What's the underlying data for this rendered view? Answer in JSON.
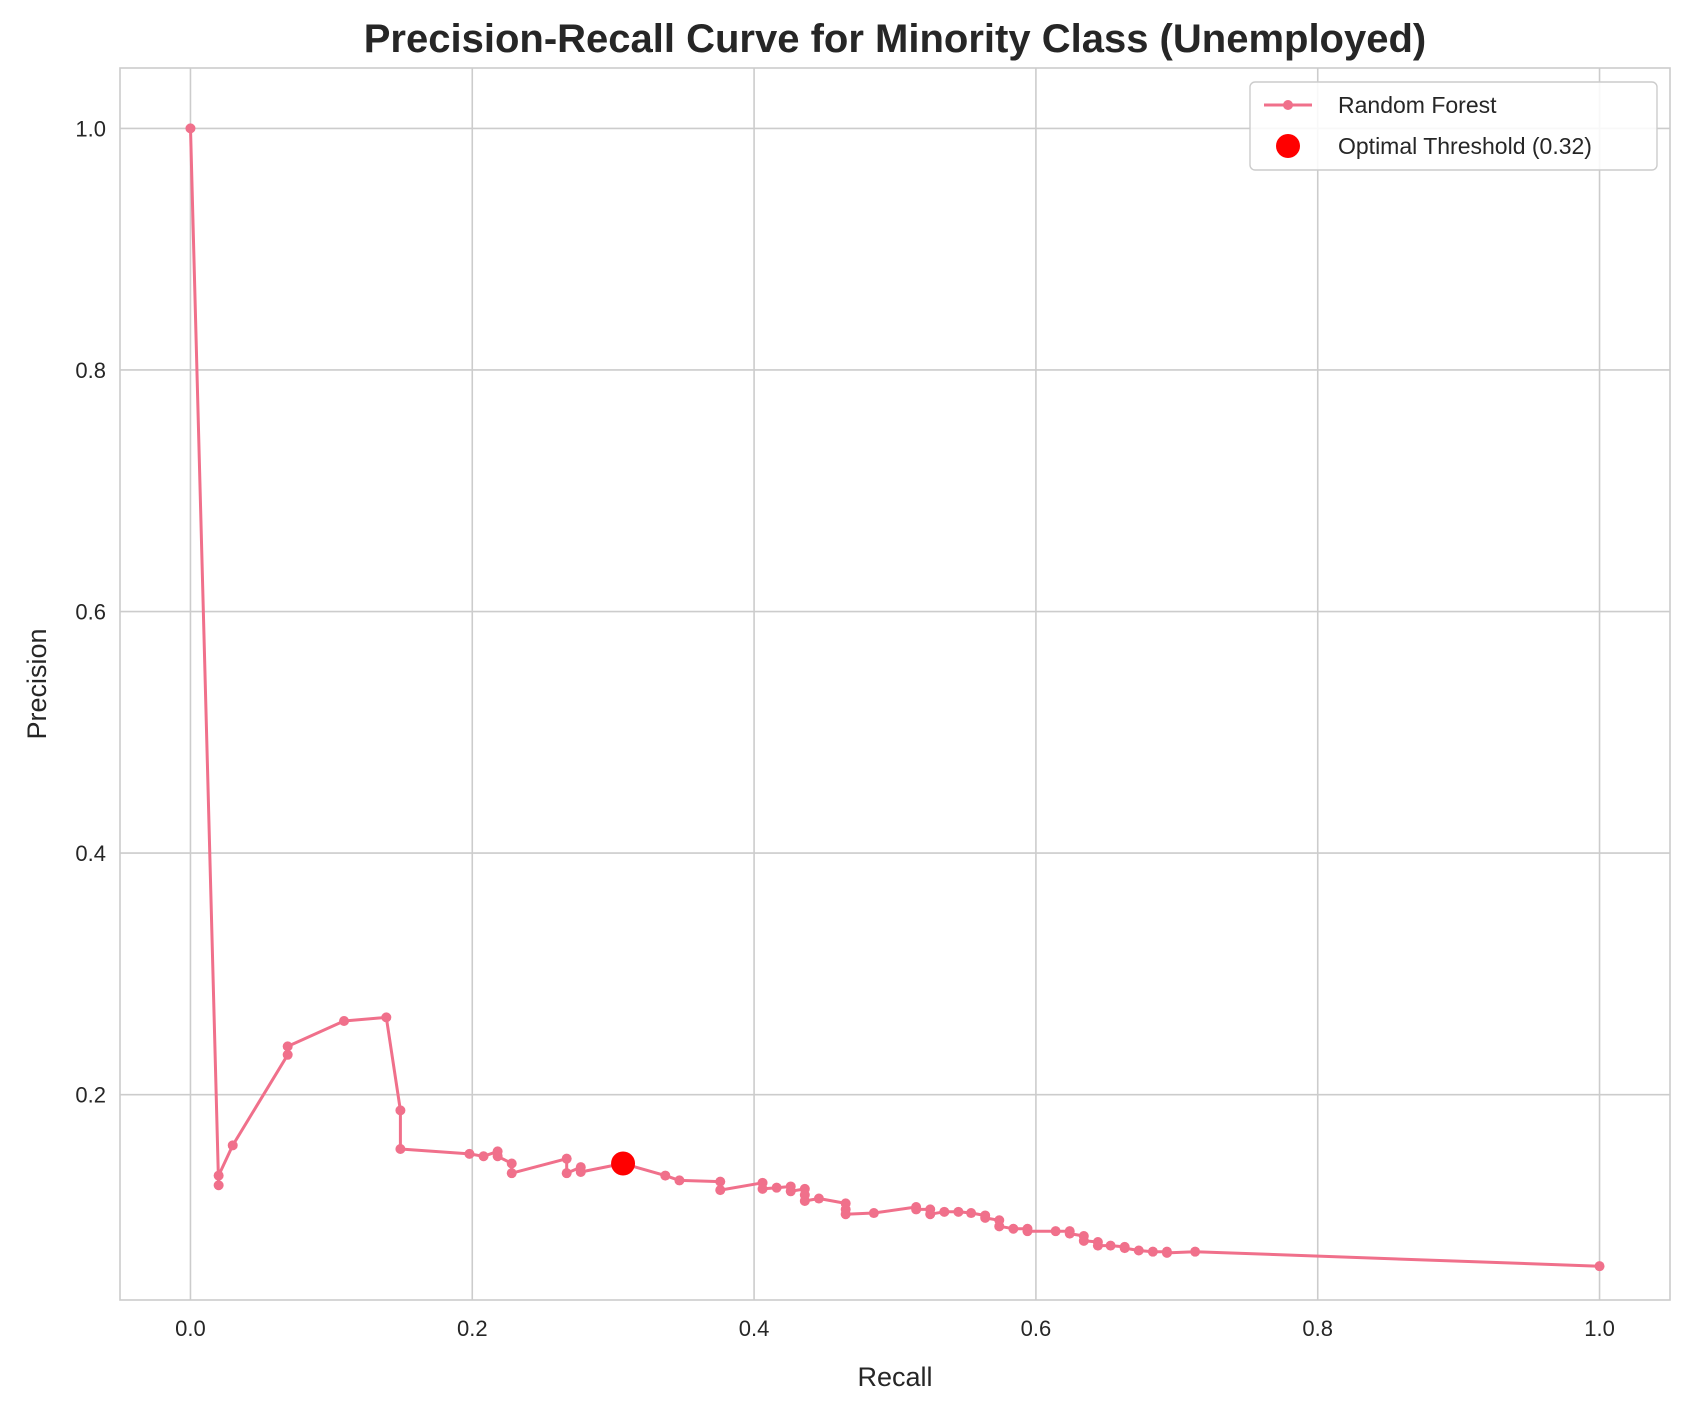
{
  "chart_data": {
    "type": "line",
    "title": "Precision-Recall Curve for Minority Class (Unemployed)",
    "xlabel": "Recall",
    "ylabel": "Precision",
    "xlim": [
      -0.05,
      1.05
    ],
    "ylim": [
      0.03,
      1.05
    ],
    "xticks": [
      0.0,
      0.2,
      0.4,
      0.6,
      0.8,
      1.0
    ],
    "xtick_labels": [
      "0.0",
      "0.2",
      "0.4",
      "0.6",
      "0.8",
      "1.0"
    ],
    "yticks": [
      0.2,
      0.4,
      0.6,
      0.8,
      1.0
    ],
    "ytick_labels": [
      "0.2",
      "0.4",
      "0.6",
      "0.8",
      "1.0"
    ],
    "grid": true,
    "legend_position": "top-right",
    "series": [
      {
        "name": "Random Forest",
        "color": "#f0708b",
        "marker": "circle",
        "x": [
          0.0,
          0.02,
          0.02,
          0.03,
          0.069,
          0.069,
          0.109,
          0.139,
          0.149,
          0.149,
          0.198,
          0.208,
          0.218,
          0.218,
          0.228,
          0.228,
          0.267,
          0.267,
          0.277,
          0.277,
          0.307,
          0.337,
          0.347,
          0.376,
          0.376,
          0.406,
          0.406,
          0.416,
          0.426,
          0.426,
          0.436,
          0.436,
          0.436,
          0.446,
          0.465,
          0.465,
          0.465,
          0.485,
          0.515,
          0.515,
          0.525,
          0.525,
          0.535,
          0.545,
          0.554,
          0.564,
          0.564,
          0.574,
          0.574,
          0.584,
          0.594,
          0.594,
          0.614,
          0.624,
          0.624,
          0.634,
          0.634,
          0.644,
          0.644,
          0.653,
          0.663,
          0.663,
          0.673,
          0.683,
          0.693,
          0.693,
          0.713,
          1.0
        ],
        "y": [
          1.0,
          0.125,
          0.133,
          0.158,
          0.233,
          0.24,
          0.261,
          0.264,
          0.187,
          0.155,
          0.151,
          0.149,
          0.153,
          0.149,
          0.143,
          0.135,
          0.147,
          0.135,
          0.14,
          0.136,
          0.143,
          0.133,
          0.129,
          0.128,
          0.121,
          0.127,
          0.122,
          0.123,
          0.124,
          0.12,
          0.122,
          0.117,
          0.112,
          0.114,
          0.11,
          0.105,
          0.101,
          0.102,
          0.107,
          0.105,
          0.105,
          0.101,
          0.103,
          0.103,
          0.102,
          0.1,
          0.098,
          0.096,
          0.091,
          0.089,
          0.089,
          0.087,
          0.087,
          0.087,
          0.085,
          0.083,
          0.079,
          0.078,
          0.075,
          0.075,
          0.074,
          0.073,
          0.071,
          0.07,
          0.07,
          0.069,
          0.07,
          0.058
        ]
      }
    ],
    "highlight": {
      "name": "Optimal Threshold (0.32)",
      "color": "#ff0000",
      "x": 0.307,
      "y": 0.143
    }
  }
}
